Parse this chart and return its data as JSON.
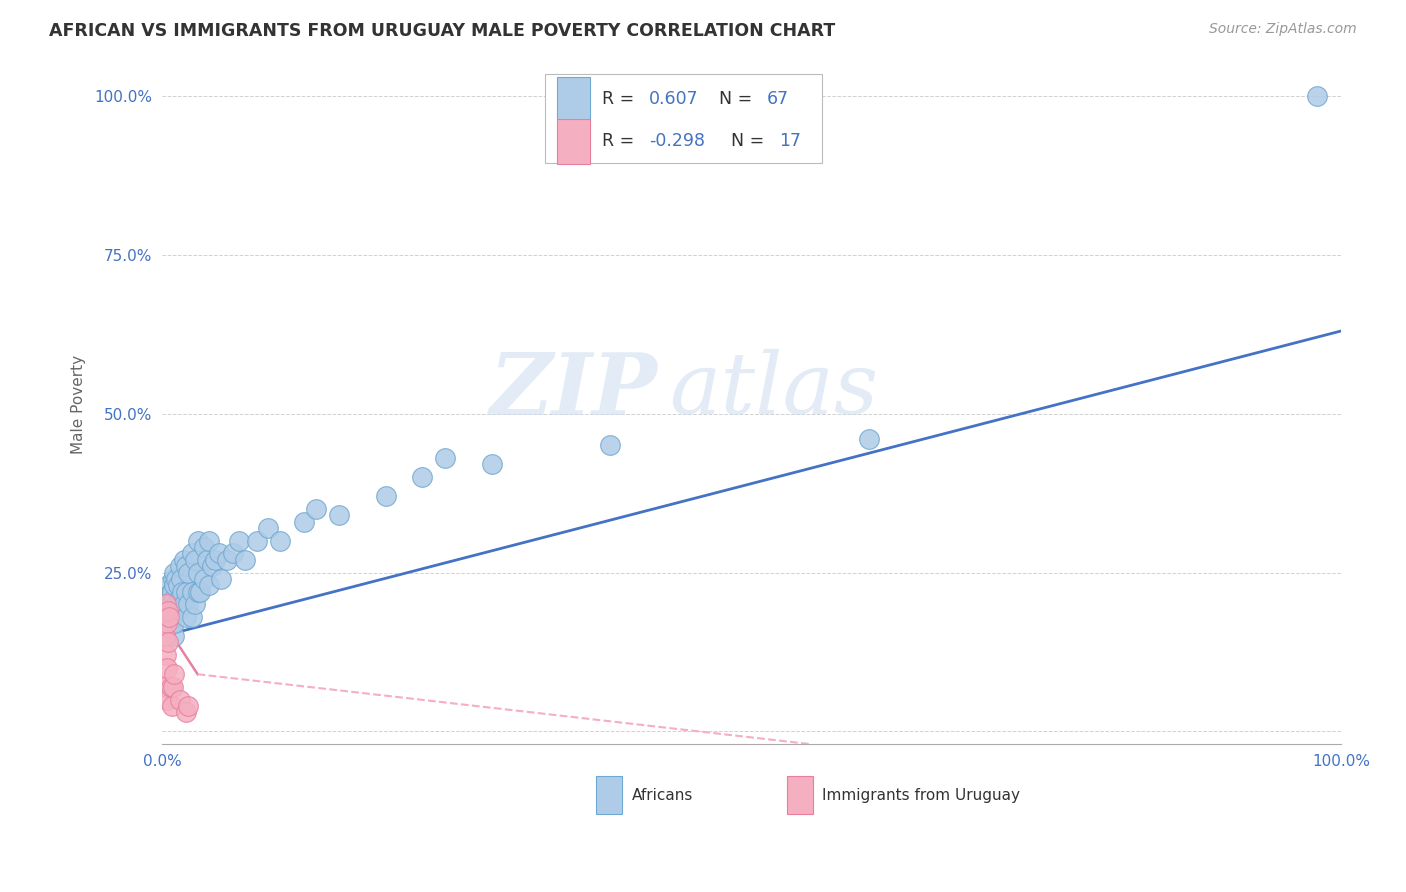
{
  "title": "AFRICAN VS IMMIGRANTS FROM URUGUAY MALE POVERTY CORRELATION CHART",
  "source": "Source: ZipAtlas.com",
  "ylabel": "Male Poverty",
  "yticks": [
    0.0,
    0.25,
    0.5,
    0.75,
    1.0
  ],
  "ytick_labels": [
    "",
    "25.0%",
    "50.0%",
    "75.0%",
    "100.0%"
  ],
  "xtick_labels": [
    "0.0%",
    "",
    "",
    "",
    "100.0%"
  ],
  "xlim": [
    0.0,
    1.0
  ],
  "ylim": [
    -0.02,
    1.05
  ],
  "watermark": "ZIPatlas",
  "legend_R1": "R = ",
  "legend_V1": "0.607",
  "legend_N1_label": "N = ",
  "legend_N1": "67",
  "legend_R2": "R = ",
  "legend_V2": "-0.298",
  "legend_N2_label": "N = ",
  "legend_N2": "17",
  "african_fill": "#aecce8",
  "african_edge": "#6fa8d0",
  "uruguay_fill": "#f4afc0",
  "uruguay_edge": "#e87fa0",
  "trendline_african": "#4472c4",
  "trendline_uruguay_solid": "#e87fa0",
  "trendline_uruguay_dash": "#f4afc0",
  "grid_color": "#cccccc",
  "background": "#ffffff",
  "title_color": "#333333",
  "source_color": "#999999",
  "tick_color": "#4472c4",
  "ylabel_color": "#666666",
  "watermark_color": "#d0dff0",
  "legend_text_color": "#333333",
  "legend_value_color": "#4472c4",
  "africans_x": [
    0.005,
    0.005,
    0.005,
    0.007,
    0.007,
    0.007,
    0.008,
    0.008,
    0.009,
    0.009,
    0.01,
    0.01,
    0.01,
    0.01,
    0.01,
    0.01,
    0.012,
    0.012,
    0.013,
    0.013,
    0.015,
    0.015,
    0.016,
    0.016,
    0.017,
    0.018,
    0.018,
    0.02,
    0.02,
    0.02,
    0.022,
    0.022,
    0.025,
    0.025,
    0.025,
    0.028,
    0.028,
    0.03,
    0.03,
    0.03,
    0.032,
    0.035,
    0.035,
    0.038,
    0.04,
    0.04,
    0.042,
    0.045,
    0.048,
    0.05,
    0.055,
    0.06,
    0.065,
    0.07,
    0.08,
    0.09,
    0.1,
    0.12,
    0.13,
    0.15,
    0.19,
    0.22,
    0.24,
    0.28,
    0.38,
    0.6,
    0.98
  ],
  "africans_y": [
    0.19,
    0.21,
    0.23,
    0.17,
    0.2,
    0.22,
    0.18,
    0.22,
    0.19,
    0.24,
    0.15,
    0.17,
    0.19,
    0.21,
    0.23,
    0.25,
    0.2,
    0.24,
    0.19,
    0.23,
    0.21,
    0.26,
    0.2,
    0.24,
    0.22,
    0.2,
    0.27,
    0.18,
    0.22,
    0.26,
    0.2,
    0.25,
    0.18,
    0.22,
    0.28,
    0.2,
    0.27,
    0.22,
    0.25,
    0.3,
    0.22,
    0.24,
    0.29,
    0.27,
    0.23,
    0.3,
    0.26,
    0.27,
    0.28,
    0.24,
    0.27,
    0.28,
    0.3,
    0.27,
    0.3,
    0.32,
    0.3,
    0.33,
    0.35,
    0.34,
    0.37,
    0.4,
    0.43,
    0.42,
    0.45,
    0.46,
    1.0
  ],
  "uruguay_x": [
    0.002,
    0.002,
    0.003,
    0.003,
    0.004,
    0.004,
    0.004,
    0.005,
    0.005,
    0.006,
    0.007,
    0.008,
    0.009,
    0.01,
    0.015,
    0.02,
    0.022
  ],
  "uruguay_y": [
    0.15,
    0.07,
    0.2,
    0.12,
    0.17,
    0.1,
    0.05,
    0.19,
    0.14,
    0.18,
    0.07,
    0.04,
    0.07,
    0.09,
    0.05,
    0.03,
    0.04
  ],
  "trendline_a_x0": 0.0,
  "trendline_a_x1": 1.0,
  "trendline_a_y0": 0.15,
  "trendline_a_y1": 0.63,
  "trendline_u_solid_x0": 0.0,
  "trendline_u_solid_x1": 0.03,
  "trendline_u_solid_y0": 0.175,
  "trendline_u_solid_y1": 0.09,
  "trendline_u_dash_x0": 0.03,
  "trendline_u_dash_x1": 0.55,
  "trendline_u_dash_y0": 0.09,
  "trendline_u_dash_y1": -0.02
}
